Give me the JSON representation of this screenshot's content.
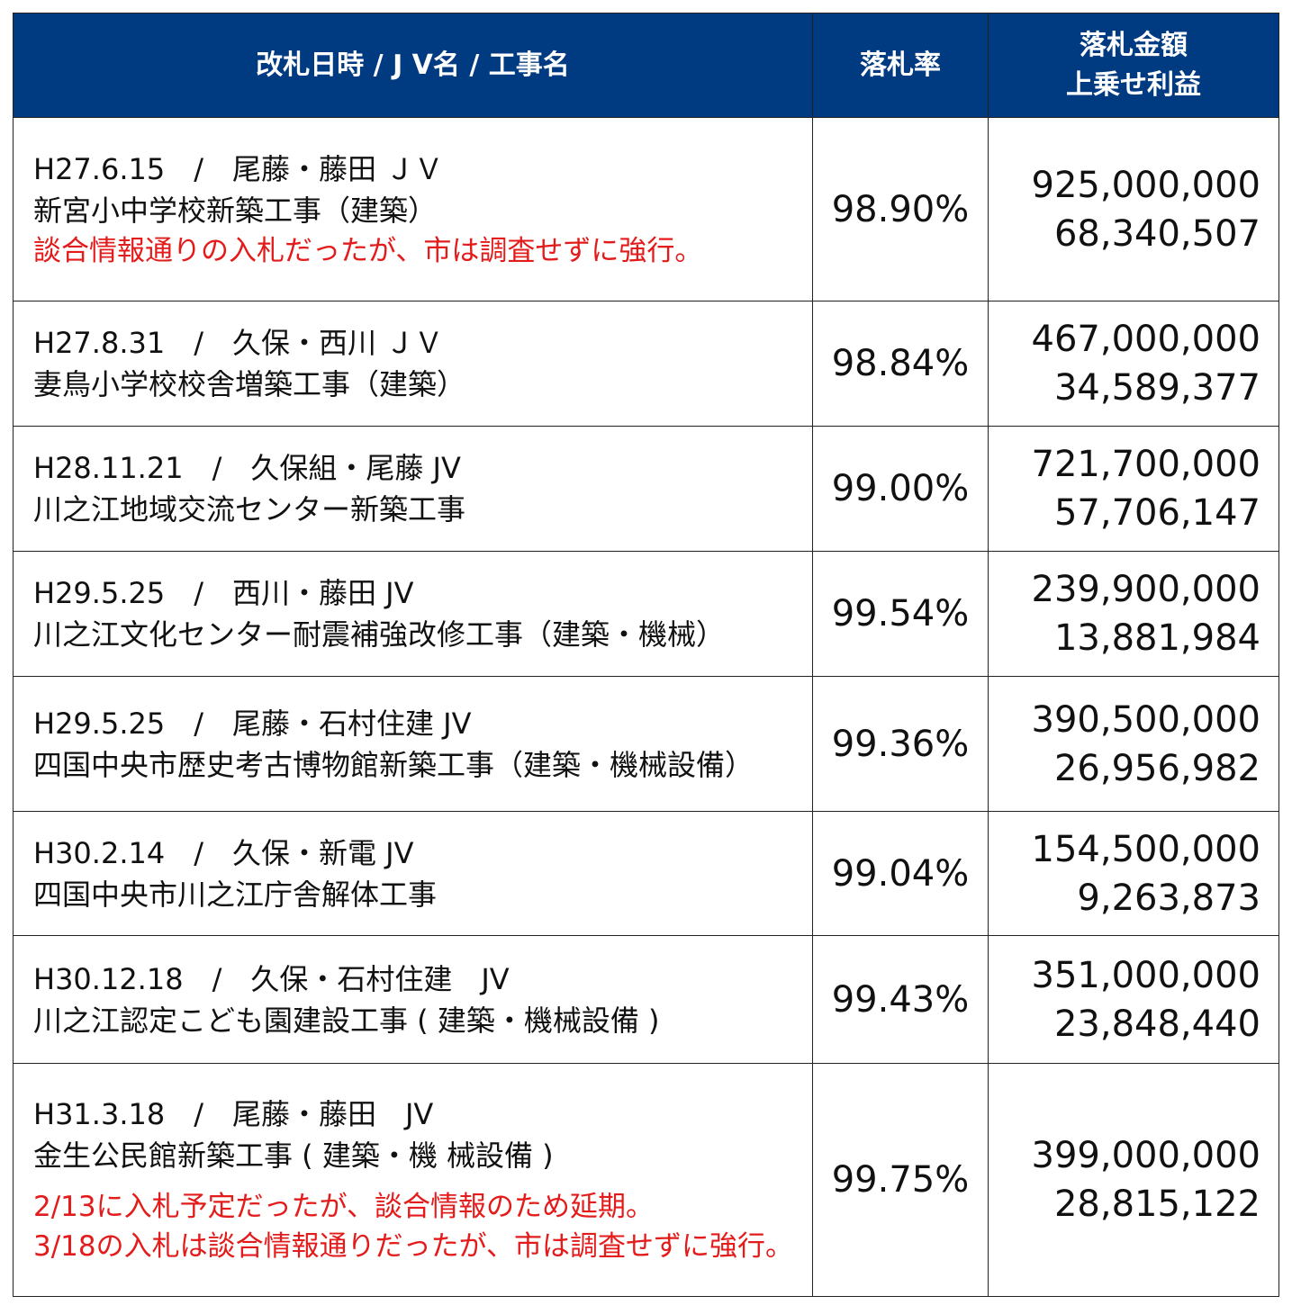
{
  "header": {
    "desc": "改札日時 / J V名 / 工事名",
    "rate": "落札率",
    "amount_line1": "落札金額",
    "amount_line2": "上乗せ利益"
  },
  "rows": [
    {
      "line1": "H27.6.15　/　尾藤・藤田 ＪＶ",
      "line2": "新宮小中学校新築工事（建築）",
      "notes": [
        "談合情報通りの入札だったが、市は調査せずに強行。"
      ],
      "rate": "98.90%",
      "amount": "925,000,000",
      "profit": "68,340,507"
    },
    {
      "line1": "H27.8.31　/　久保・西川 ＪＶ",
      "line2": "妻鳥小学校校舎増築工事（建築）",
      "notes": [],
      "rate": "98.84%",
      "amount": "467,000,000",
      "profit": "34,589,377"
    },
    {
      "line1": "H28.11.21　/　久保組・尾藤 JV",
      "line2": "川之江地域交流センター新築工事",
      "notes": [],
      "rate": "99.00%",
      "amount": "721,700,000",
      "profit": "57,706,147"
    },
    {
      "line1": "H29.5.25　/　西川・藤田 JV",
      "line2": "川之江文化センター耐震補強改修工事（建築・機械）",
      "notes": [],
      "rate": "99.54%",
      "amount": "239,900,000",
      "profit": "13,881,984"
    },
    {
      "line1": "H29.5.25　/　尾藤・石村住建 JV",
      "line2": "四国中央市歴史考古博物館新築工事（建築・機械設備）",
      "notes": [],
      "rate": "99.36%",
      "amount": "390,500,000",
      "profit": "26,956,982"
    },
    {
      "line1": "H30.2.14　/　久保・新電 JV",
      "line2": "四国中央市川之江庁舎解体工事",
      "notes": [],
      "rate": "99.04%",
      "amount": "154,500,000",
      "profit": "9,263,873"
    },
    {
      "line1": "H30.12.18　/　久保・石村住建　JV",
      "line2": "川之江認定こども園建設工事 ( 建築・機械設備 )",
      "notes": [],
      "rate": "99.43%",
      "amount": "351,000,000",
      "profit": "23,848,440"
    },
    {
      "line1": "H31.3.18　/　尾藤・藤田　JV",
      "line2": "金生公民館新築工事 ( 建築・機 械設備 )",
      "notes": [
        "2/13に入札予定だったが、談合情報のため延期。",
        "3/18の入札は談合情報通りだったが、市は調査せずに強行。"
      ],
      "rate": "99.75%",
      "amount": "399,000,000",
      "profit": "28,815,122"
    }
  ]
}
